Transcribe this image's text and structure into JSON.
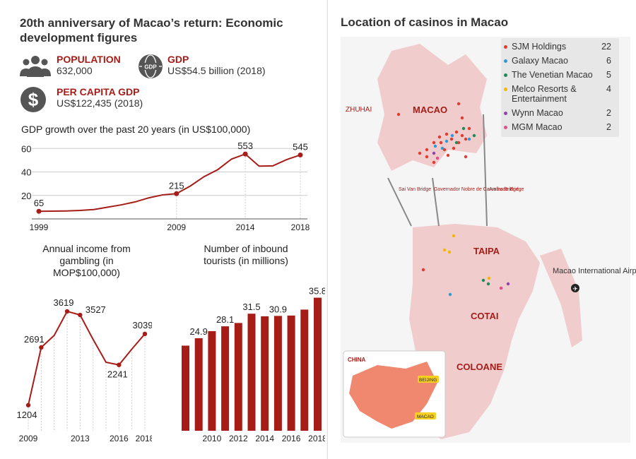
{
  "title": "20th anniversary of Macao’s return: Economic development figures",
  "stats": [
    {
      "icon": "people-icon",
      "label": "POPULATION",
      "value": "632,000"
    },
    {
      "icon": "gdp-globe-icon",
      "label": "GDP",
      "value": "US$54.5 billion (2018)"
    },
    {
      "icon": "dollar-icon",
      "label": "PER CAPITA GDP",
      "value": "US$122,435 (2018)"
    }
  ],
  "colors": {
    "accent": "#a61d18",
    "land": "#f0cccc",
    "sea": "#ffffff",
    "china": "#f08870"
  },
  "chart_data": [
    {
      "type": "line",
      "title": "GDP growth over the past 20 years (in US$100,000)",
      "x": [
        1999,
        2000,
        2001,
        2002,
        2003,
        2004,
        2005,
        2006,
        2007,
        2008,
        2009,
        2010,
        2011,
        2012,
        2013,
        2014,
        2015,
        2016,
        2017,
        2018
      ],
      "y": [
        6.5,
        6.6,
        6.8,
        7.2,
        8.0,
        10.0,
        12.0,
        14.5,
        18.0,
        20.5,
        21.5,
        28.0,
        36.0,
        42.0,
        51.0,
        55.3,
        45.0,
        45.2,
        50.5,
        54.5
      ],
      "labeled_points": [
        {
          "x": 1999,
          "label": "65"
        },
        {
          "x": 2009,
          "label": "215"
        },
        {
          "x": 2014,
          "label": "553"
        },
        {
          "x": 2018,
          "label": "545"
        }
      ],
      "xticks": [
        "1999",
        "2009",
        "2014",
        "2018"
      ],
      "yticks": [
        "20",
        "40",
        "60"
      ],
      "ylim": [
        0,
        65
      ]
    },
    {
      "type": "line",
      "title": "Annual income from gambling (in MOP$100,000)",
      "x": [
        2009,
        2010,
        2011,
        2012,
        2013,
        2014,
        2015,
        2016,
        2017,
        2018
      ],
      "y": [
        1204,
        2691,
        3000,
        3619,
        3527,
        2900,
        2310,
        2241,
        2650,
        3039
      ],
      "labeled_points": [
        {
          "x": 2009,
          "label": "1204"
        },
        {
          "x": 2010,
          "label": "2691"
        },
        {
          "x": 2012,
          "label": "3619"
        },
        {
          "x": 2013,
          "label": "3527"
        },
        {
          "x": 2016,
          "label": "2241"
        },
        {
          "x": 2018,
          "label": "3039"
        }
      ],
      "xticks": [
        "2009",
        "2013",
        "2016",
        "2018"
      ],
      "ylim": [
        1000,
        4000
      ]
    },
    {
      "type": "bar",
      "title": "Number of inbound tourists (in millions)",
      "categories": [
        "2008",
        "2009",
        "2010",
        "2011",
        "2012",
        "2013",
        "2014",
        "2015",
        "2016",
        "2017",
        "2018"
      ],
      "values": [
        22.9,
        24.9,
        26.8,
        28.1,
        29.0,
        31.5,
        30.8,
        30.9,
        31.0,
        32.6,
        35.8
      ],
      "labeled": [
        {
          "index": 1,
          "label": "24.9"
        },
        {
          "index": 3,
          "label": "28.1"
        },
        {
          "index": 5,
          "label": "31.5"
        },
        {
          "index": 7,
          "label": "30.9"
        },
        {
          "index": 10,
          "label": "35.8"
        }
      ],
      "xticks": [
        "2010",
        "2012",
        "2014",
        "2016",
        "2018"
      ],
      "ylim": [
        0,
        38
      ]
    }
  ],
  "map": {
    "title": "Location of casinos in Macao",
    "legend": [
      {
        "name": "SJM Holdings",
        "count": "22",
        "color": "#e03c31"
      },
      {
        "name": "Galaxy Macao",
        "count": "6",
        "color": "#2e9bd6"
      },
      {
        "name": "The Venetian Macao",
        "count": "5",
        "color": "#1e8a5a"
      },
      {
        "name": "Melco Resorts & Entertainment",
        "count": "4",
        "color": "#f2b705"
      },
      {
        "name": "Wynn Macao",
        "count": "2",
        "color": "#8e44ad"
      },
      {
        "name": "MGM Macao",
        "count": "2",
        "color": "#e84a8a"
      }
    ],
    "labels": {
      "zhuhai": "ZHUHAI",
      "macao": "MACAO",
      "taipa": "TAIPA",
      "cotai": "COTAI",
      "coloane": "COLOANE",
      "airport": "Macao International Airport",
      "bridge1": "Sai Van Bridge",
      "bridge2": "Governador Nobre de Carvalho Bridge",
      "bridge3": "Amizade Bridge"
    },
    "inset": {
      "china": "CHINA",
      "beijing": "BEIJING",
      "macao": "MACAO"
    }
  }
}
